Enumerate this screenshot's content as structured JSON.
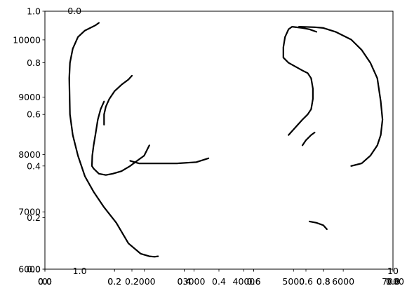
{
  "chart_data": {
    "type": "line",
    "title": "",
    "xlabel": "",
    "ylabel": "",
    "grid": false,
    "legend": "none",
    "axes": {
      "primary_x": {
        "range": [
          0.0,
          1.0
        ],
        "ticks": [
          "0.0",
          "0.2",
          "0.4",
          "0.6",
          "0.8",
          "1.0"
        ]
      },
      "primary_y": {
        "range": [
          0.0,
          1.0
        ],
        "ticks": [
          "0.0",
          "0.2",
          "0.4",
          "0.6",
          "0.8",
          "1.0"
        ]
      },
      "secondary_x": {
        "range": [
          0,
          7000
        ],
        "ticks": [
          "0",
          "2000",
          "3000",
          "4000",
          "5000",
          "6000",
          "7000"
        ]
      },
      "secondary_y": {
        "range": [
          6000,
          10500
        ],
        "ticks": [
          "6000",
          "7000",
          "8000",
          "9000",
          "10000"
        ]
      },
      "extra_x_a": {
        "ticks": [
          {
            "label": "0.0",
            "value": 0.0
          },
          {
            "label": "0.2",
            "value": 0.25
          },
          {
            "label": "0.4",
            "value": 0.5
          },
          {
            "label": "0.6",
            "value": 0.75
          },
          {
            "label": "0.8",
            "value": 1.0
          }
        ]
      },
      "extra_x_b": {
        "ticks": [
          {
            "label": "0.0",
            "value": 0.0
          },
          {
            "label": "0.2",
            "value": 0.2
          },
          {
            "label": "0.4",
            "value": 0.4
          },
          {
            "label": "0.6",
            "value": 0.6
          },
          {
            "label": "0.8",
            "value": 0.8
          },
          {
            "label": "1.0",
            "value": 1.0
          }
        ]
      },
      "extra_x_c": {
        "ticks": [
          {
            "label": "1.0",
            "value": 0.1
          },
          {
            "label": "10",
            "value": 1.0
          }
        ]
      },
      "top_x": {
        "ticks": [
          {
            "label": "0.0",
            "value": 0.085
          }
        ]
      }
    },
    "series": [
      {
        "x": [
          0.155,
          0.145,
          0.115,
          0.095,
          0.08,
          0.072,
          0.07,
          0.072,
          0.08,
          0.095,
          0.115,
          0.14,
          0.17,
          0.205,
          0.24,
          0.275,
          0.3,
          0.315,
          0.325
        ],
        "y": [
          0.955,
          0.945,
          0.925,
          0.9,
          0.855,
          0.8,
          0.74,
          0.6,
          0.52,
          0.44,
          0.36,
          0.3,
          0.24,
          0.18,
          0.1,
          0.06,
          0.05,
          0.048,
          0.05
        ]
      },
      {
        "x": [
          0.17,
          0.16,
          0.152,
          0.145,
          0.14,
          0.136,
          0.135,
          0.14,
          0.155,
          0.175,
          0.195,
          0.22,
          0.245,
          0.265,
          0.285,
          0.3
        ],
        "y": [
          0.65,
          0.62,
          0.58,
          0.52,
          0.48,
          0.44,
          0.4,
          0.39,
          0.37,
          0.365,
          0.37,
          0.38,
          0.4,
          0.42,
          0.44,
          0.48
        ]
      },
      {
        "x": [
          0.25,
          0.24,
          0.22,
          0.2,
          0.185,
          0.175,
          0.17,
          0.17
        ],
        "y": [
          0.75,
          0.735,
          0.715,
          0.69,
          0.66,
          0.63,
          0.6,
          0.56
        ]
      },
      {
        "x": [
          0.245,
          0.27,
          0.32,
          0.38,
          0.435,
          0.47
        ],
        "y": [
          0.42,
          0.41,
          0.41,
          0.41,
          0.415,
          0.43
        ]
      },
      {
        "x": [
          0.7,
          0.72,
          0.74,
          0.755,
          0.765,
          0.77,
          0.77,
          0.765,
          0.755,
          0.74,
          0.72,
          0.7,
          0.685,
          0.685,
          0.69,
          0.7,
          0.71,
          0.74,
          0.76,
          0.78
        ],
        "y": [
          0.52,
          0.55,
          0.58,
          0.6,
          0.62,
          0.66,
          0.7,
          0.74,
          0.76,
          0.77,
          0.785,
          0.8,
          0.82,
          0.86,
          0.9,
          0.93,
          0.94,
          0.935,
          0.93,
          0.92
        ]
      },
      {
        "x": [
          0.74,
          0.75,
          0.765,
          0.775
        ],
        "y": [
          0.48,
          0.5,
          0.52,
          0.53
        ]
      },
      {
        "x": [
          0.73,
          0.775,
          0.8,
          0.835,
          0.88,
          0.91,
          0.935,
          0.955,
          0.965,
          0.97,
          0.965,
          0.955,
          0.935,
          0.91,
          0.88
        ],
        "y": [
          0.94,
          0.938,
          0.935,
          0.92,
          0.89,
          0.85,
          0.8,
          0.74,
          0.65,
          0.58,
          0.52,
          0.48,
          0.44,
          0.41,
          0.4
        ]
      },
      {
        "x": [
          0.76,
          0.78,
          0.8,
          0.81
        ],
        "y": [
          0.185,
          0.18,
          0.17,
          0.155
        ]
      }
    ]
  }
}
